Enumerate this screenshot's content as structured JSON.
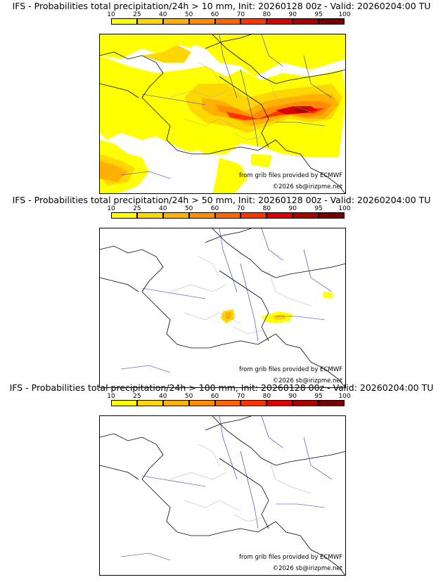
{
  "panels": [
    {
      "title": "IFS - Probabilities total precipitation/24h > 10 mm, Init: 20260128 00z - Valid: 20260204:00 TU",
      "threshold_mm": 10,
      "coverage": "widespread"
    },
    {
      "title": "IFS - Probabilities total precipitation/24h > 50 mm, Init: 20260128 00z - Valid: 20260204:00 TU",
      "threshold_mm": 50,
      "coverage": "isolated"
    },
    {
      "title": "IFS - Probabilities total precipitation/24h > 100 mm, Init: 20260128 00z - Valid: 20260204:00 TU",
      "threshold_mm": 100,
      "coverage": "none"
    }
  ],
  "colorbar": {
    "ticks": [
      "10",
      "25",
      "40",
      "50",
      "60",
      "70",
      "80",
      "90",
      "95",
      "100"
    ],
    "colors": [
      "#ffff00",
      "#ffd700",
      "#ffb000",
      "#ff8c00",
      "#ff6600",
      "#ff3300",
      "#dd0000",
      "#aa0000",
      "#7a0000"
    ]
  },
  "credit": "from grib files provided by ECMWF",
  "copyright": "©2026 sb@irizpme.net",
  "colors": {
    "border": "#000000",
    "river": "#2233cc",
    "region": "#aaaaaa"
  }
}
